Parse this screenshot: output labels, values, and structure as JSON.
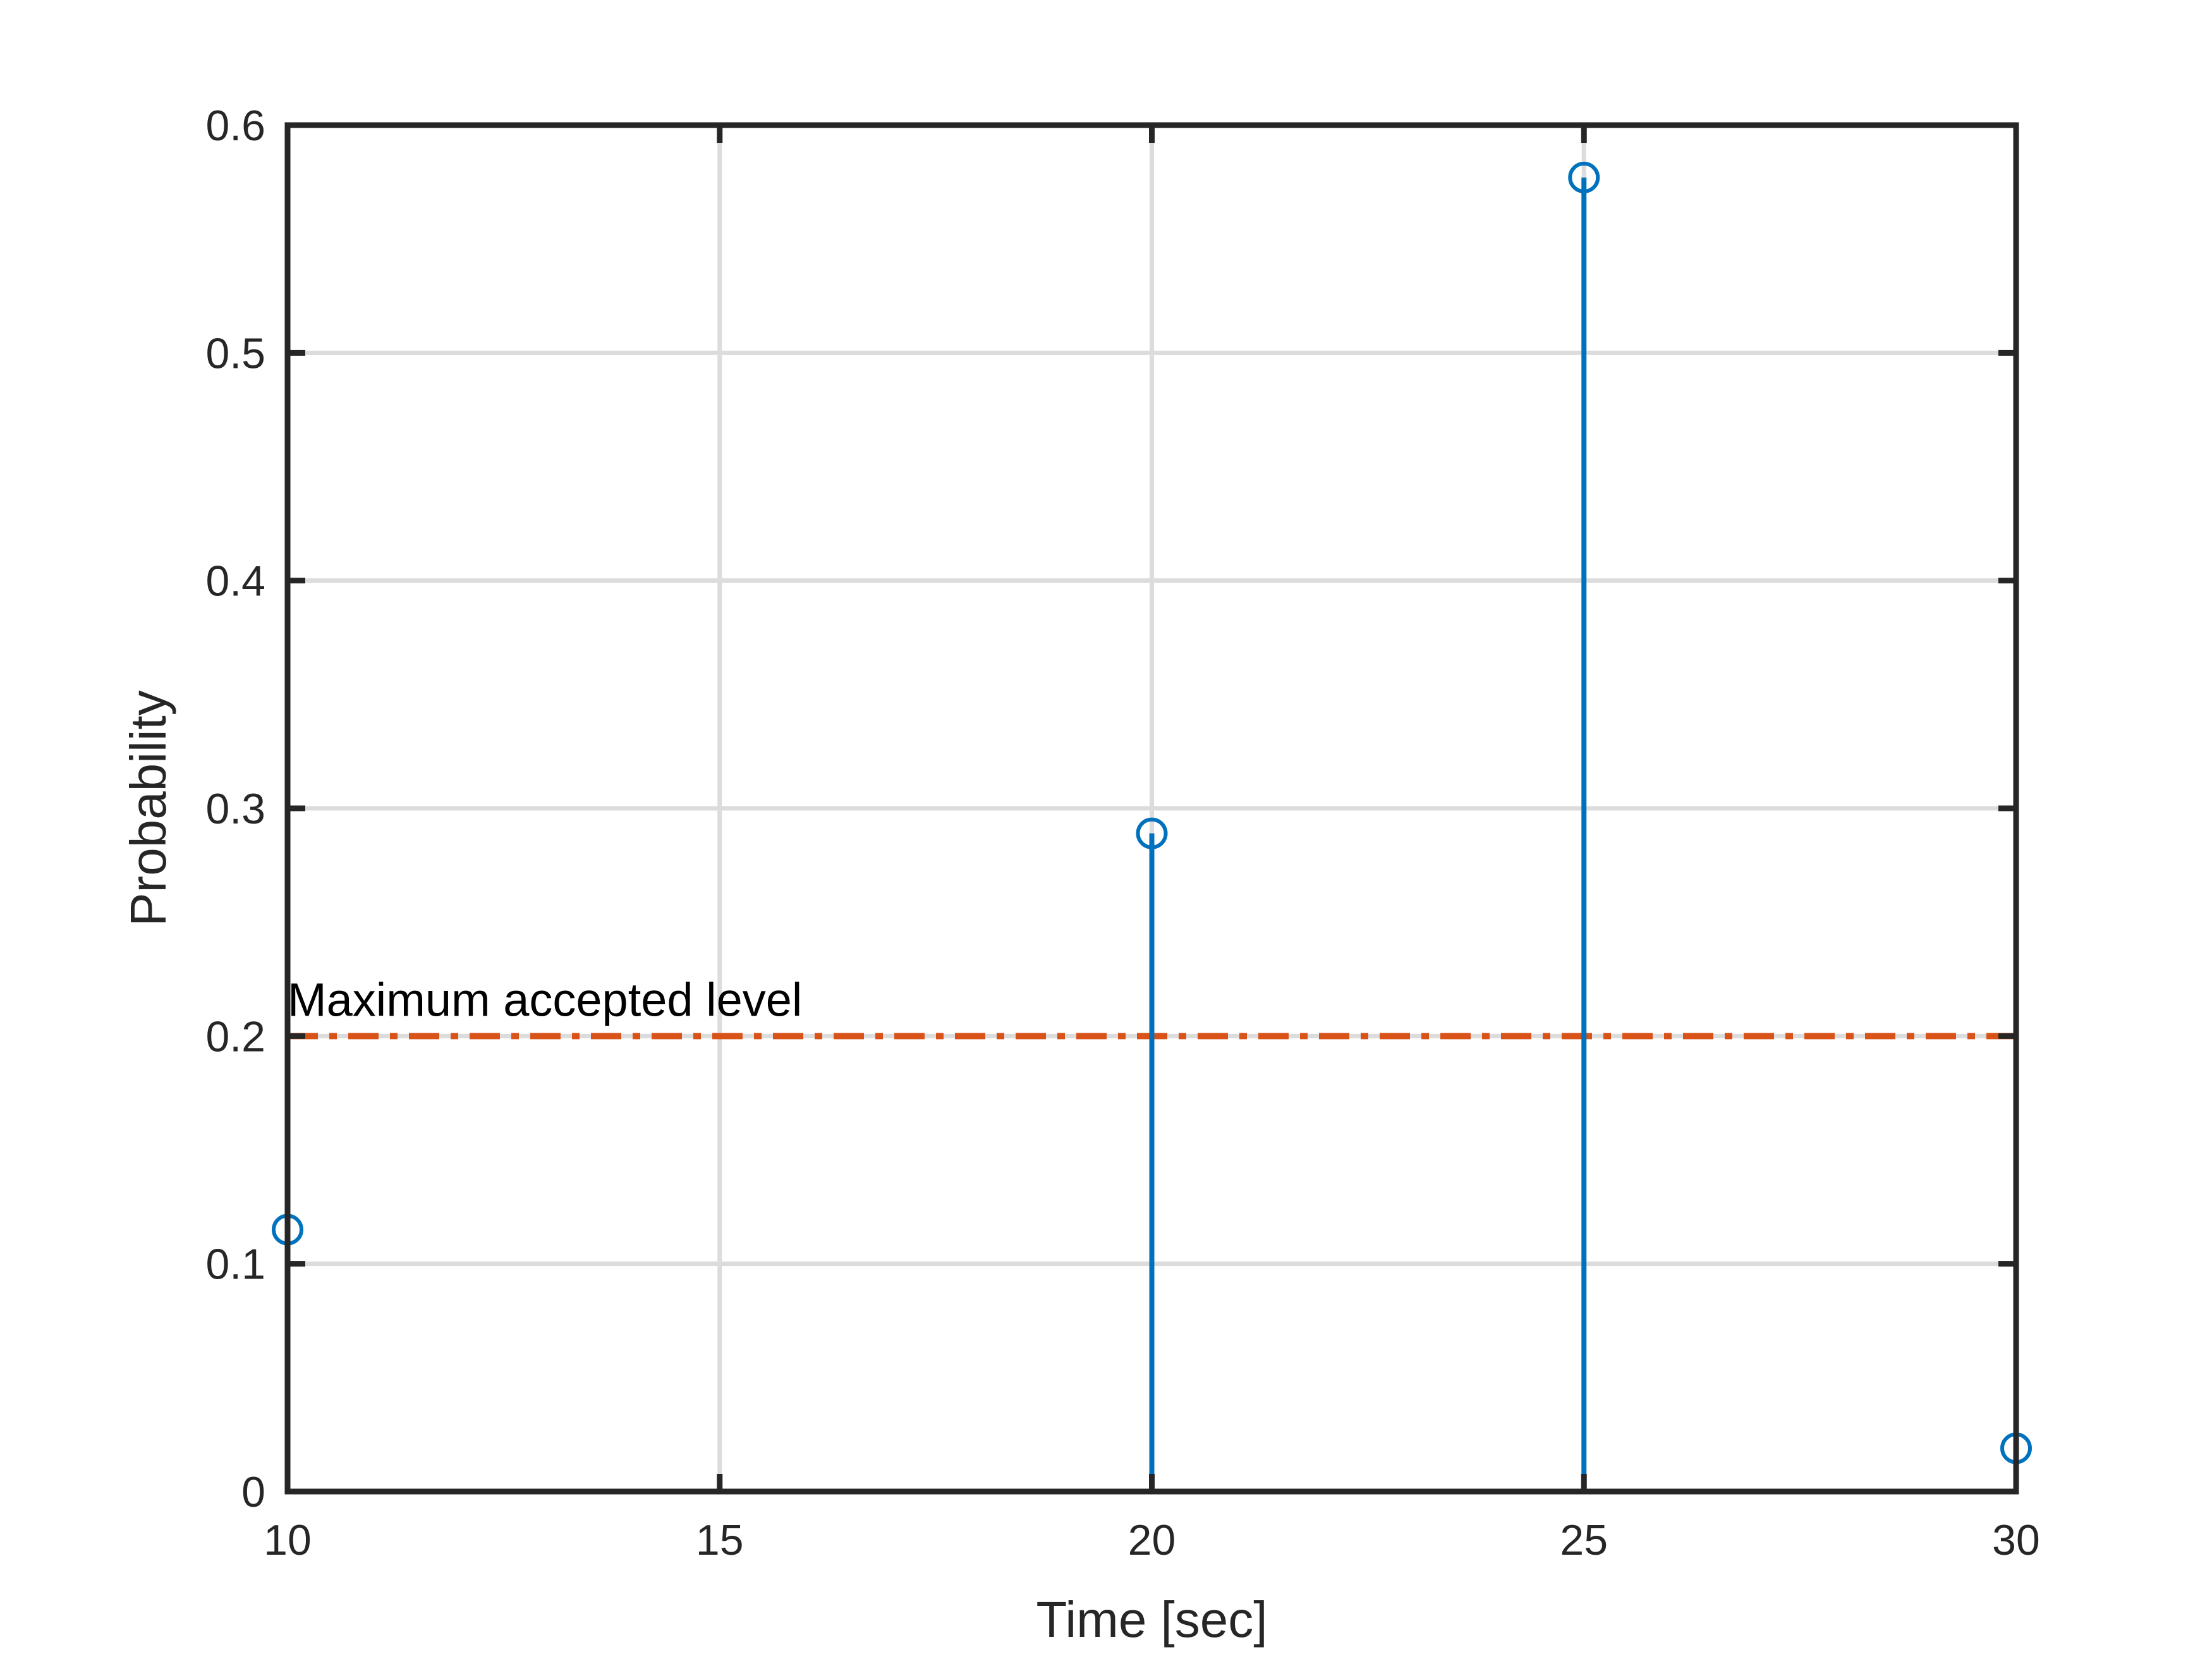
{
  "chart_data": {
    "type": "stem",
    "x": [
      10,
      20,
      25,
      30
    ],
    "y": [
      0.115,
      0.289,
      0.577,
      0.019
    ],
    "xlabel": "Time [sec]",
    "ylabel": "Probability",
    "xlim": [
      10,
      30
    ],
    "ylim": [
      0,
      0.6
    ],
    "xticks": [
      10,
      15,
      20,
      25,
      30
    ],
    "xtick_labels": [
      "10",
      "15",
      "20",
      "25",
      "30"
    ],
    "yticks": [
      0,
      0.1,
      0.2,
      0.3,
      0.4,
      0.5,
      0.6
    ],
    "ytick_labels": [
      "0",
      "0.1",
      "0.2",
      "0.3",
      "0.4",
      "0.5",
      "0.6"
    ],
    "grid": true,
    "threshold": {
      "value": 0.2,
      "label": "Maximum accepted level",
      "style": "dash-dot"
    },
    "colors": {
      "stem": "#0072BD",
      "threshold": "#D95319",
      "axes": "#262626",
      "grid": "#DCDCDC"
    }
  }
}
